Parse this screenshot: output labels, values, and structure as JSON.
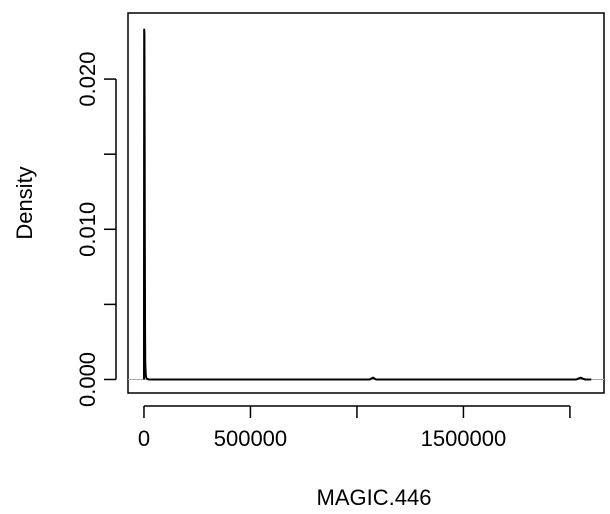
{
  "chart_data": {
    "type": "line",
    "title": "",
    "xlabel": "MAGIC.446",
    "ylabel": "Density",
    "xlim": [
      -75000,
      2160000
    ],
    "ylim": [
      -0.0009,
      0.0244
    ],
    "x_ticks": [
      0,
      500000,
      1000000,
      1500000,
      2000000
    ],
    "x_tick_labels": [
      "0",
      "500000",
      "",
      "1500000",
      ""
    ],
    "y_ticks": [
      0.0,
      0.005,
      0.01,
      0.015,
      0.02
    ],
    "y_tick_labels": [
      "0.000",
      "",
      "0.010",
      "",
      "0.020"
    ],
    "baseline": 0,
    "grid": false,
    "series": [
      {
        "x": [
          0,
          1000,
          2000,
          3000,
          4000,
          5000,
          6000,
          8000,
          10000,
          14000,
          20000,
          40000,
          100000,
          300000,
          600000,
          1000000,
          1060000,
          1075000,
          1090000,
          1200000,
          1600000,
          2000000,
          2030000,
          2050000,
          2070000,
          2100000
        ],
        "y": [
          0.0,
          0.0233,
          0.023,
          0.0175,
          0.009,
          0.0035,
          0.0012,
          0.0004,
          0.00015,
          5e-05,
          1e-05,
          0.0,
          0.0,
          0.0,
          0.0,
          0.0,
          0.0,
          0.00012,
          0.0,
          0.0,
          0.0,
          0.0,
          0.0,
          0.00012,
          0.0,
          0.0
        ]
      }
    ]
  }
}
